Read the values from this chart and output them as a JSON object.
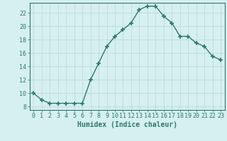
{
  "x": [
    0,
    1,
    2,
    3,
    4,
    5,
    6,
    7,
    8,
    9,
    10,
    11,
    12,
    13,
    14,
    15,
    16,
    17,
    18,
    19,
    20,
    21,
    22,
    23
  ],
  "y": [
    10,
    9,
    8.5,
    8.5,
    8.5,
    8.5,
    8.5,
    12,
    14.5,
    17,
    18.5,
    19.5,
    20.5,
    22.5,
    23,
    23,
    21.5,
    20.5,
    18.5,
    18.5,
    17.5,
    17,
    15.5,
    15
  ],
  "line_color": "#2d7a6e",
  "marker": "+",
  "marker_size": 5,
  "background_color": "#d6eff0",
  "grid_color": "#b8d8da",
  "xlabel": "Humidex (Indice chaleur)",
  "ylabel": "",
  "title": "",
  "xlim": [
    -0.5,
    23.5
  ],
  "ylim": [
    7.5,
    23.5
  ],
  "yticks": [
    8,
    10,
    12,
    14,
    16,
    18,
    20,
    22
  ],
  "xticks": [
    0,
    1,
    2,
    3,
    4,
    5,
    6,
    7,
    8,
    9,
    10,
    11,
    12,
    13,
    14,
    15,
    16,
    17,
    18,
    19,
    20,
    21,
    22,
    23
  ],
  "tick_color": "#2d7a6e",
  "axis_color": "#2d7a6e",
  "label_fontsize": 7,
  "tick_fontsize": 6,
  "linewidth": 1.0,
  "marker_linewidth": 1.2
}
